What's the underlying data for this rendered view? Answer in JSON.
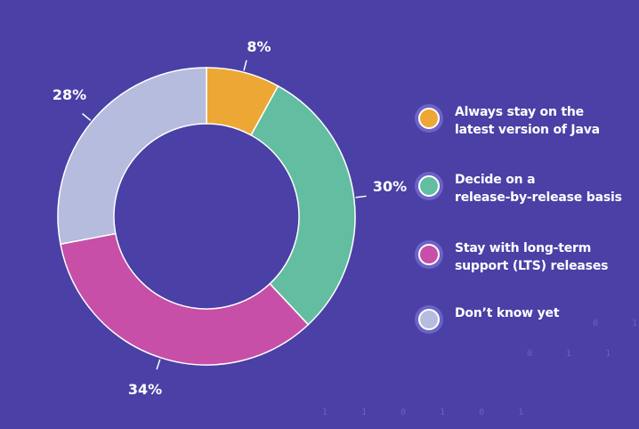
{
  "chart_data": {
    "type": "pie",
    "title": "",
    "donut": true,
    "categories": [
      "Always stay on the latest version of Java",
      "Decide on a release-by-release basis",
      "Stay with long-term support (LTS) releases",
      "Don’t know yet"
    ],
    "values": [
      8,
      30,
      34,
      28
    ],
    "labels": [
      "8%",
      "30%",
      "34%",
      "28%"
    ],
    "colors": [
      "#eda734",
      "#63bda1",
      "#c74fa8",
      "#b5bcdd"
    ],
    "legend_position": "right"
  },
  "legend": {
    "items": [
      "Always stay on the\nlatest version of Java",
      "Decide on a\nrelease-by-release basis",
      "Stay with long-term\nsupport (LTS) releases",
      "Don’t know yet"
    ]
  },
  "background_decoration": {
    "binary_rows": [
      "0 1",
      "0 1 1 0",
      "1 1 0 1 0 1"
    ]
  },
  "colors": {
    "background": "#4a40a6"
  }
}
